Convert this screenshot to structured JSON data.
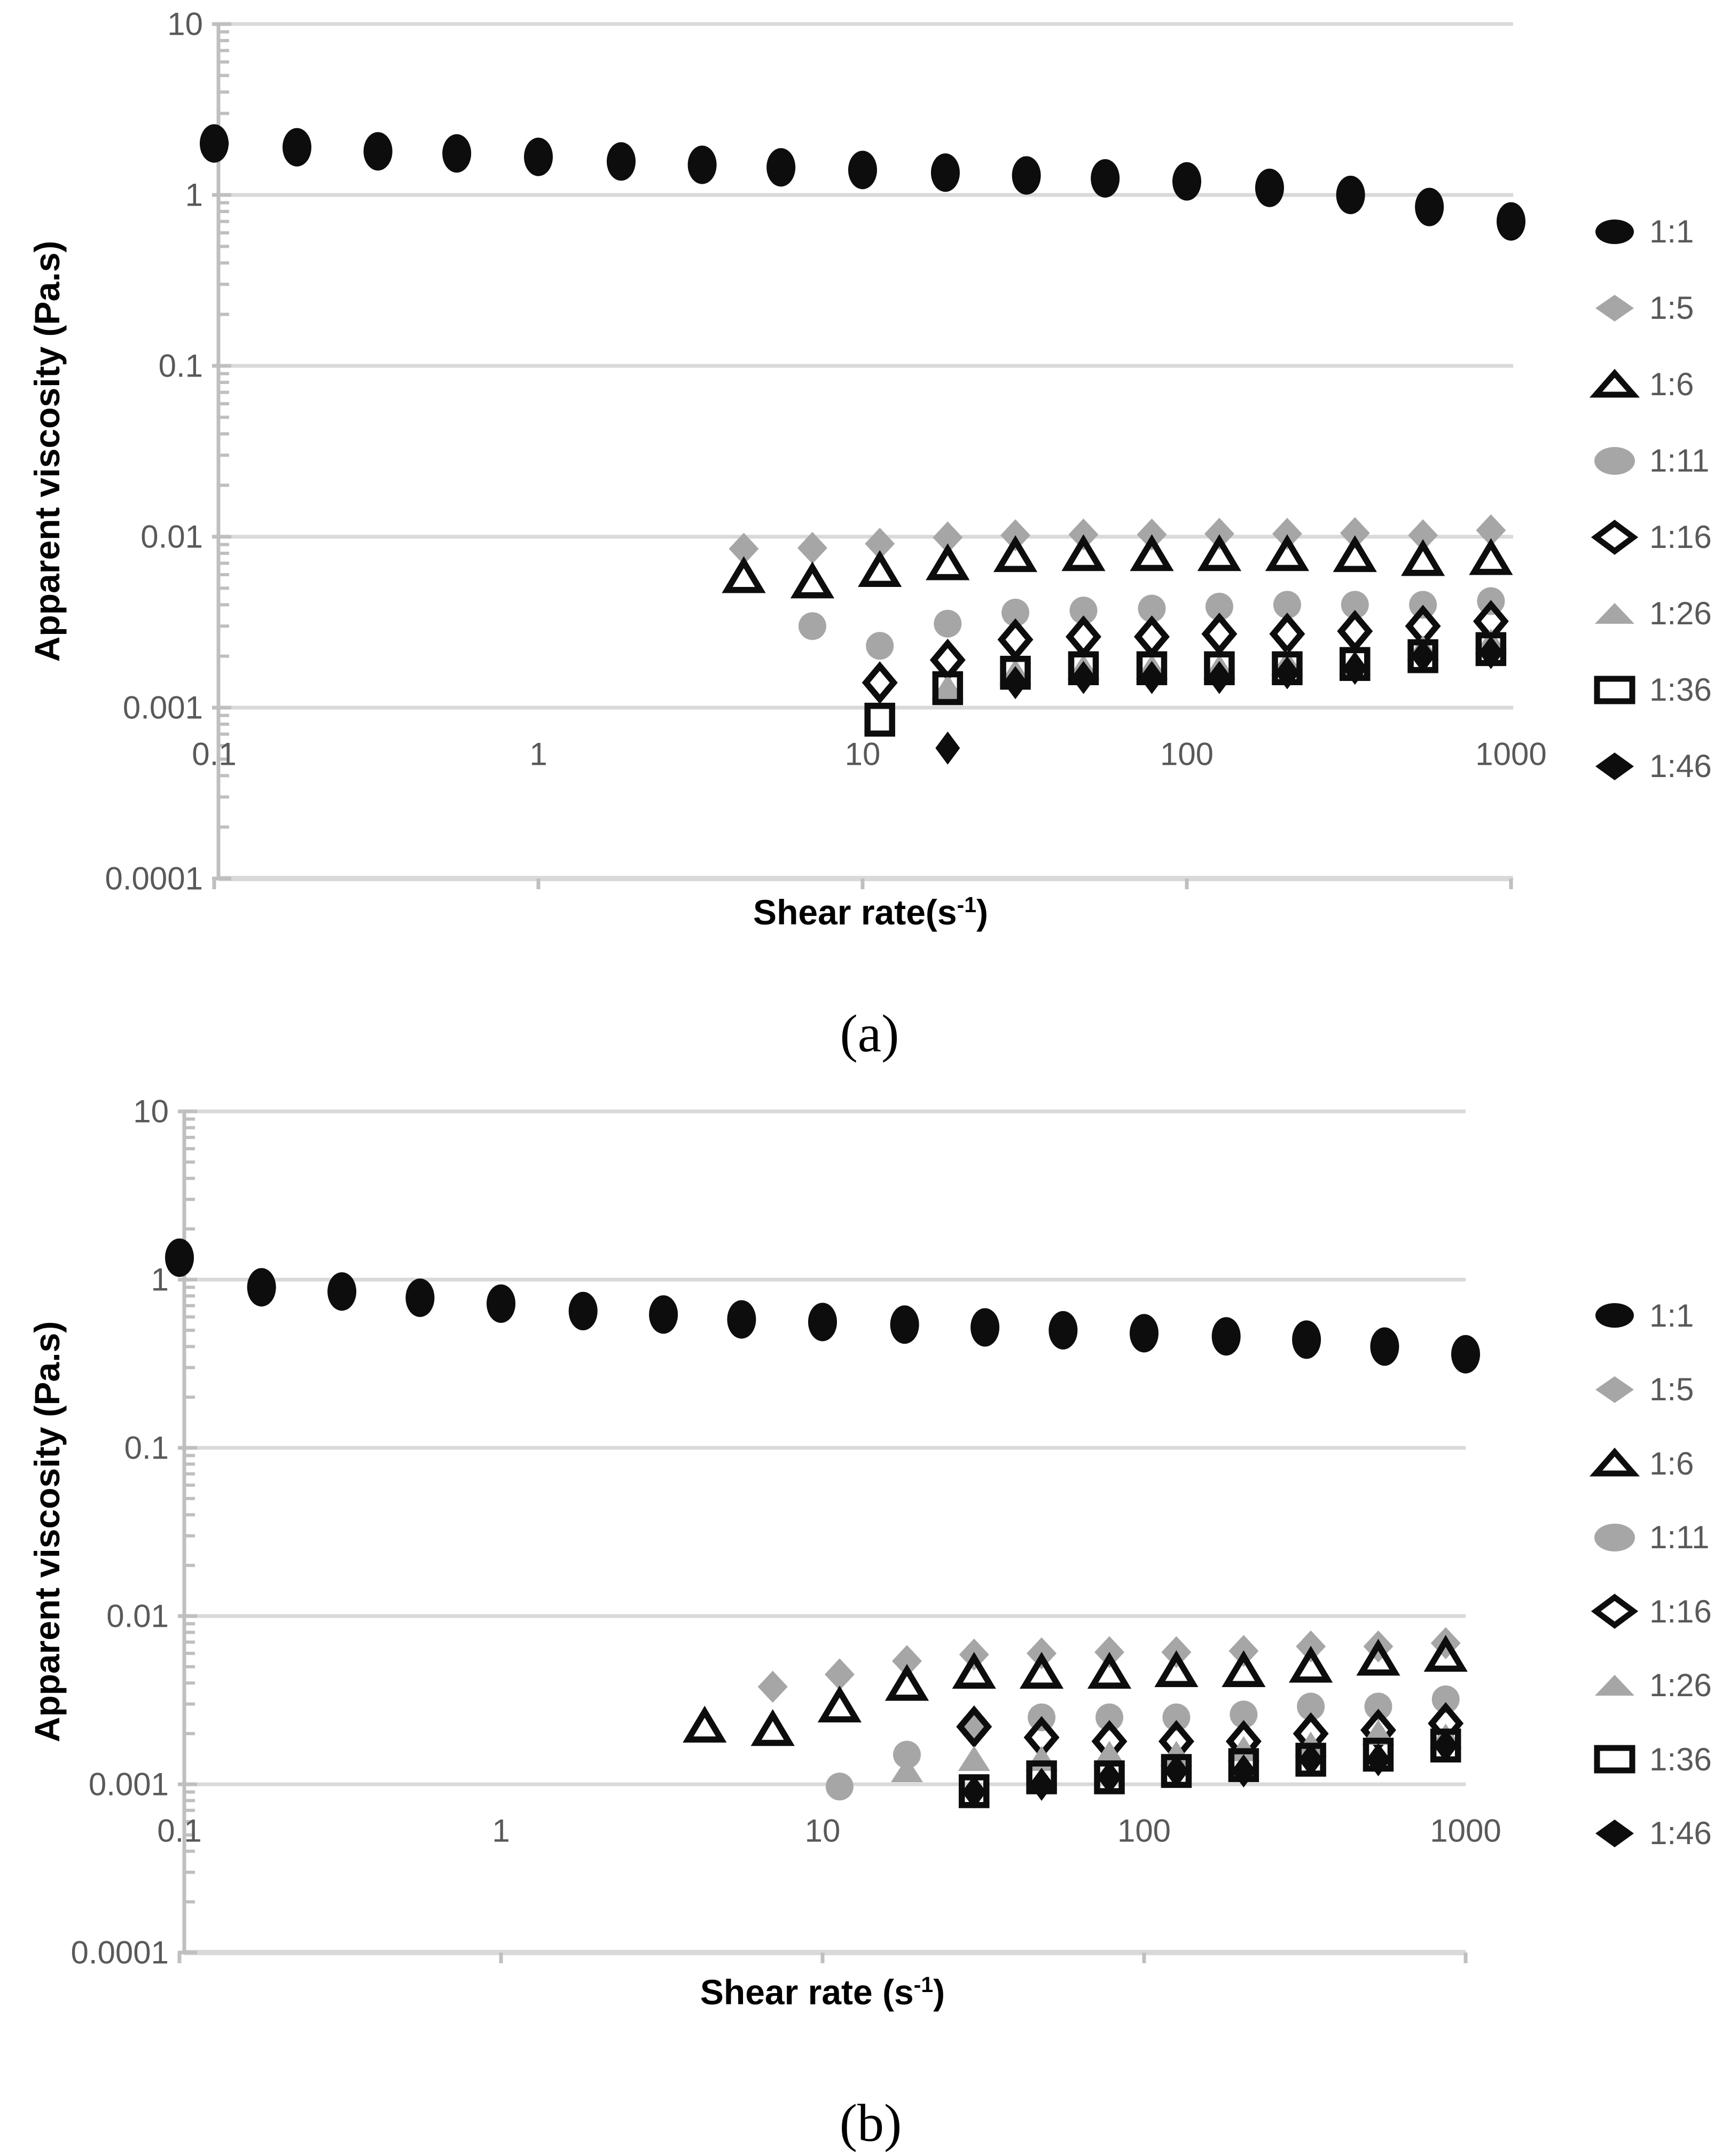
{
  "colors": {
    "background": "#ffffff",
    "marker_black": "#0d0d0d",
    "marker_gray": "#a6a6a6",
    "text_gray": "#595959",
    "gridline": "#d9d9d9",
    "axis_line": "#bfbfbf"
  },
  "chart_data": [
    {
      "id": "a",
      "type": "scatter",
      "caption": "(a)",
      "title": "",
      "xlabel_pre": "Shear rate(s",
      "xlabel_sup": "-1",
      "xlabel_post": ")",
      "ylabel": "Apparent viscosity (Pa.s)",
      "xlim": [
        0.1,
        1000
      ],
      "ylim": [
        0.0001,
        10
      ],
      "x_scale": "log",
      "y_scale": "log",
      "grid": "horizontal decade gridlines",
      "legend_position": "right",
      "x_ticks": [
        {
          "v": 0.1,
          "label": "0.1"
        },
        {
          "v": 1,
          "label": "1"
        },
        {
          "v": 10,
          "label": "10"
        },
        {
          "v": 100,
          "label": "100"
        },
        {
          "v": 1000,
          "label": "1000"
        }
      ],
      "y_ticks": [
        {
          "v": 10,
          "label": "10"
        },
        {
          "v": 1,
          "label": "1"
        },
        {
          "v": 0.1,
          "label": "0.1"
        },
        {
          "v": 0.01,
          "label": "0.01"
        },
        {
          "v": 0.001,
          "label": "0.001"
        },
        {
          "v": 0.0001,
          "label": "0.0001"
        }
      ],
      "series": [
        {
          "name": "1:1",
          "marker": "filled-circle",
          "color": "#0d0d0d",
          "points": [
            [
              0.1,
              2.0
            ],
            [
              0.18,
              1.9
            ],
            [
              0.32,
              1.8
            ],
            [
              0.56,
              1.75
            ],
            [
              1,
              1.67
            ],
            [
              1.8,
              1.57
            ],
            [
              3.2,
              1.5
            ],
            [
              5.6,
              1.45
            ],
            [
              10,
              1.4
            ],
            [
              18,
              1.35
            ],
            [
              32,
              1.3
            ],
            [
              56,
              1.25
            ],
            [
              100,
              1.2
            ],
            [
              180,
              1.1
            ],
            [
              320,
              1.0
            ],
            [
              560,
              0.85
            ],
            [
              1000,
              0.7
            ]
          ]
        },
        {
          "name": "1:5",
          "marker": "filled-diamond-gray",
          "color": "#a6a6a6",
          "points": [
            [
              4.3,
              0.0085
            ],
            [
              7,
              0.0086
            ],
            [
              11.3,
              0.0091
            ],
            [
              18.3,
              0.0099
            ],
            [
              29.6,
              0.0102
            ],
            [
              48,
              0.0103
            ],
            [
              78,
              0.0103
            ],
            [
              126,
              0.0104
            ],
            [
              204,
              0.0104
            ],
            [
              330,
              0.0105
            ],
            [
              535,
              0.0102
            ],
            [
              867,
              0.0109
            ]
          ]
        },
        {
          "name": "1:6",
          "marker": "open-triangle",
          "color": "#0d0d0d",
          "points": [
            [
              4.3,
              0.0058
            ],
            [
              7,
              0.0054
            ],
            [
              11.3,
              0.0063
            ],
            [
              18.3,
              0.0069
            ],
            [
              29.6,
              0.0077
            ],
            [
              48,
              0.0078
            ],
            [
              78,
              0.0078
            ],
            [
              126,
              0.0078
            ],
            [
              204,
              0.0078
            ],
            [
              330,
              0.0077
            ],
            [
              535,
              0.0073
            ],
            [
              867,
              0.0074
            ]
          ]
        },
        {
          "name": "1:11",
          "marker": "filled-circle-gray",
          "color": "#a6a6a6",
          "points": [
            [
              7,
              0.003
            ],
            [
              11.3,
              0.0023
            ],
            [
              18.3,
              0.0031
            ],
            [
              29.6,
              0.0036
            ],
            [
              48,
              0.0037
            ],
            [
              78,
              0.0038
            ],
            [
              126,
              0.0039
            ],
            [
              204,
              0.004
            ],
            [
              330,
              0.004
            ],
            [
              535,
              0.004
            ],
            [
              867,
              0.0042
            ]
          ]
        },
        {
          "name": "1:16",
          "marker": "open-diamond",
          "color": "#0d0d0d",
          "points": [
            [
              11.3,
              0.0014
            ],
            [
              18.3,
              0.0019
            ],
            [
              29.6,
              0.0025
            ],
            [
              48,
              0.0026
            ],
            [
              78,
              0.0026
            ],
            [
              126,
              0.0027
            ],
            [
              204,
              0.0027
            ],
            [
              330,
              0.0028
            ],
            [
              535,
              0.003
            ],
            [
              867,
              0.0032
            ]
          ]
        },
        {
          "name": "1:26",
          "marker": "filled-triangle-gray",
          "color": "#a6a6a6",
          "points": [
            [
              18.3,
              0.0013
            ],
            [
              29.6,
              0.0016
            ],
            [
              48,
              0.0017
            ],
            [
              78,
              0.0017
            ],
            [
              126,
              0.0017
            ],
            [
              204,
              0.0018
            ],
            [
              330,
              0.0018
            ],
            [
              535,
              0.0022
            ],
            [
              867,
              0.0024
            ]
          ]
        },
        {
          "name": "1:36",
          "marker": "open-square",
          "color": "#0d0d0d",
          "points": [
            [
              11.3,
              0.00085
            ],
            [
              18.3,
              0.0013
            ],
            [
              29.6,
              0.0016
            ],
            [
              48,
              0.0017
            ],
            [
              78,
              0.0017
            ],
            [
              126,
              0.0017
            ],
            [
              204,
              0.0017
            ],
            [
              330,
              0.0018
            ],
            [
              535,
              0.002
            ],
            [
              867,
              0.0022
            ]
          ]
        },
        {
          "name": "1:46",
          "marker": "filled-diamond-black",
          "color": "#0d0d0d",
          "points": [
            [
              18.3,
              0.00058
            ],
            [
              29.6,
              0.0014
            ],
            [
              48,
              0.0015
            ],
            [
              78,
              0.0015
            ],
            [
              126,
              0.0015
            ],
            [
              204,
              0.0016
            ],
            [
              330,
              0.0017
            ],
            [
              535,
              0.002
            ],
            [
              867,
              0.0021
            ]
          ]
        }
      ]
    },
    {
      "id": "b",
      "type": "scatter",
      "caption": "(b)",
      "title": "",
      "xlabel_pre": "Shear rate (s",
      "xlabel_sup": "-1",
      "xlabel_post": ")",
      "ylabel": "Apparent viscosity (Pa.s)",
      "xlim": [
        0.1,
        1000
      ],
      "ylim": [
        0.0001,
        10
      ],
      "x_scale": "log",
      "y_scale": "log",
      "grid": "horizontal decade gridlines",
      "legend_position": "right",
      "x_ticks": [
        {
          "v": 0.1,
          "label": "0.1"
        },
        {
          "v": 1,
          "label": "1"
        },
        {
          "v": 10,
          "label": "10"
        },
        {
          "v": 100,
          "label": "100"
        },
        {
          "v": 1000,
          "label": "1000"
        }
      ],
      "y_ticks": [
        {
          "v": 10,
          "label": "10"
        },
        {
          "v": 1,
          "label": "1"
        },
        {
          "v": 0.1,
          "label": "0.1"
        },
        {
          "v": 0.01,
          "label": "0.01"
        },
        {
          "v": 0.001,
          "label": "0.001"
        },
        {
          "v": 0.0001,
          "label": "0.0001"
        }
      ],
      "series": [
        {
          "name": "1:1",
          "marker": "filled-circle",
          "color": "#0d0d0d",
          "points": [
            [
              0.1,
              1.35
            ],
            [
              0.18,
              0.9
            ],
            [
              0.32,
              0.85
            ],
            [
              0.56,
              0.78
            ],
            [
              1,
              0.72
            ],
            [
              1.8,
              0.65
            ],
            [
              3.2,
              0.62
            ],
            [
              5.6,
              0.58
            ],
            [
              10,
              0.56
            ],
            [
              18,
              0.54
            ],
            [
              32,
              0.52
            ],
            [
              56,
              0.5
            ],
            [
              100,
              0.48
            ],
            [
              180,
              0.46
            ],
            [
              320,
              0.44
            ],
            [
              560,
              0.4
            ],
            [
              1000,
              0.36
            ]
          ]
        },
        {
          "name": "1:5",
          "marker": "filled-diamond-gray",
          "color": "#a6a6a6",
          "points": [
            [
              7,
              0.0038
            ],
            [
              11.3,
              0.0045
            ],
            [
              18.3,
              0.0054
            ],
            [
              29.6,
              0.0059
            ],
            [
              48,
              0.006
            ],
            [
              78,
              0.0061
            ],
            [
              126,
              0.0061
            ],
            [
              204,
              0.0062
            ],
            [
              330,
              0.0066
            ],
            [
              535,
              0.0066
            ],
            [
              867,
              0.0069
            ]
          ]
        },
        {
          "name": "1:6",
          "marker": "open-triangle",
          "color": "#0d0d0d",
          "points": [
            [
              4.3,
              0.0022
            ],
            [
              7,
              0.0021
            ],
            [
              11.3,
              0.0029
            ],
            [
              18.3,
              0.0039
            ],
            [
              29.6,
              0.0046
            ],
            [
              48,
              0.0046
            ],
            [
              78,
              0.0046
            ],
            [
              126,
              0.0047
            ],
            [
              204,
              0.0047
            ],
            [
              330,
              0.005
            ],
            [
              535,
              0.0055
            ],
            [
              867,
              0.0058
            ]
          ]
        },
        {
          "name": "1:11",
          "marker": "filled-circle-gray",
          "color": "#a6a6a6",
          "points": [
            [
              11.3,
              0.00097
            ],
            [
              18.3,
              0.0015
            ],
            [
              29.6,
              0.0022
            ],
            [
              48,
              0.0025
            ],
            [
              78,
              0.0025
            ],
            [
              126,
              0.0025
            ],
            [
              204,
              0.0026
            ],
            [
              330,
              0.0029
            ],
            [
              535,
              0.0029
            ],
            [
              867,
              0.0032
            ]
          ]
        },
        {
          "name": "1:16",
          "marker": "open-diamond",
          "color": "#0d0d0d",
          "points": [
            [
              29.6,
              0.0022
            ],
            [
              48,
              0.0019
            ],
            [
              78,
              0.0018
            ],
            [
              126,
              0.0018
            ],
            [
              204,
              0.0018
            ],
            [
              330,
              0.002
            ],
            [
              535,
              0.0021
            ],
            [
              867,
              0.0023
            ]
          ]
        },
        {
          "name": "1:26",
          "marker": "filled-triangle-gray",
          "color": "#a6a6a6",
          "points": [
            [
              18.3,
              0.0012
            ],
            [
              29.6,
              0.0014
            ],
            [
              48,
              0.0014
            ],
            [
              78,
              0.0015
            ],
            [
              126,
              0.0015
            ],
            [
              204,
              0.0016
            ],
            [
              330,
              0.0017
            ],
            [
              535,
              0.002
            ],
            [
              867,
              0.0019
            ]
          ]
        },
        {
          "name": "1:36",
          "marker": "open-square",
          "color": "#0d0d0d",
          "points": [
            [
              29.6,
              0.00091
            ],
            [
              48,
              0.0011
            ],
            [
              78,
              0.0011
            ],
            [
              126,
              0.0012
            ],
            [
              204,
              0.0013
            ],
            [
              330,
              0.0014
            ],
            [
              535,
              0.0015
            ],
            [
              867,
              0.0017
            ]
          ]
        },
        {
          "name": "1:46",
          "marker": "filled-diamond-black",
          "color": "#0d0d0d",
          "points": [
            [
              29.6,
              0.0009
            ],
            [
              48,
              0.001
            ],
            [
              78,
              0.0011
            ],
            [
              126,
              0.0012
            ],
            [
              204,
              0.0012
            ],
            [
              330,
              0.0014
            ],
            [
              535,
              0.0014
            ],
            [
              867,
              0.0017
            ]
          ]
        }
      ]
    }
  ]
}
